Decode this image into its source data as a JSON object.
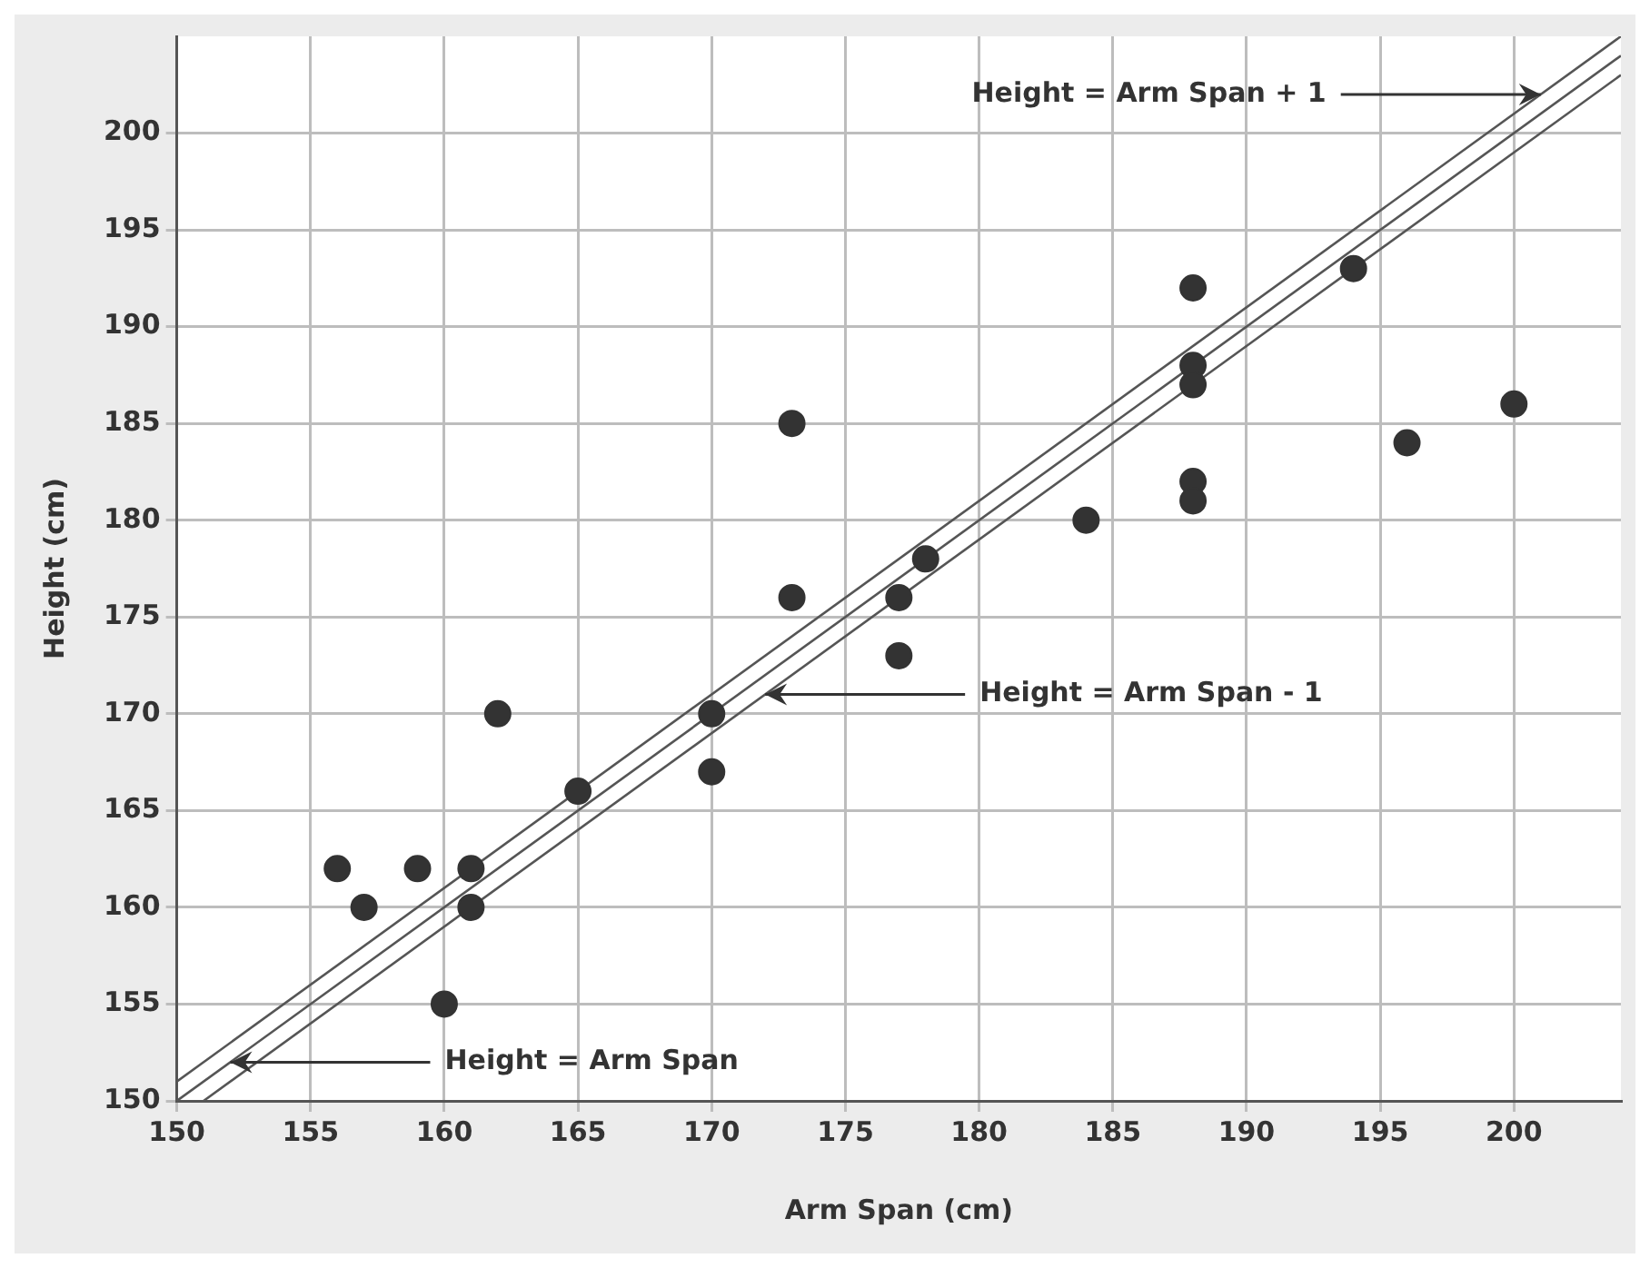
{
  "chart_data": {
    "type": "scatter",
    "xlabel": "Arm Span (cm)",
    "ylabel": "Height (cm)",
    "xlim": [
      150,
      204
    ],
    "ylim": [
      150,
      205
    ],
    "xticks": [
      150,
      155,
      160,
      165,
      170,
      175,
      180,
      185,
      190,
      195,
      200
    ],
    "yticks": [
      150,
      155,
      160,
      165,
      170,
      175,
      180,
      185,
      190,
      195,
      200
    ],
    "grid": true,
    "legend": false,
    "marker": "circle",
    "series": [
      {
        "color": "#333333",
        "x": [
          156,
          157,
          159,
          160,
          161,
          161,
          162,
          165,
          170,
          170,
          173,
          173,
          177,
          177,
          178,
          184,
          188,
          188,
          188,
          188,
          188,
          194,
          196,
          200
        ],
        "values": [
          162,
          160,
          162,
          155,
          162,
          160,
          170,
          166,
          170,
          167,
          185,
          176,
          176,
          173,
          178,
          180,
          192,
          188,
          187,
          182,
          181,
          193,
          184,
          186
        ]
      },
      {
        "type": "line",
        "marker": "none",
        "color": "#555555",
        "x": [
          150,
          204
        ],
        "values": [
          151,
          205
        ]
      },
      {
        "type": "line",
        "marker": "none",
        "color": "#555555",
        "x": [
          150,
          204
        ],
        "values": [
          150,
          204
        ]
      },
      {
        "type": "line",
        "marker": "none",
        "color": "#555555",
        "x": [
          151,
          204
        ],
        "values": [
          150,
          203
        ]
      }
    ],
    "annotations": [
      {
        "text": "Height = Arm Span + 1",
        "x": 201,
        "y": 202
      },
      {
        "text": "Height = Arm Span - 1",
        "x": 172,
        "y": 171
      },
      {
        "text": "Height = Arm Span",
        "x": 152,
        "y": 152
      }
    ]
  }
}
